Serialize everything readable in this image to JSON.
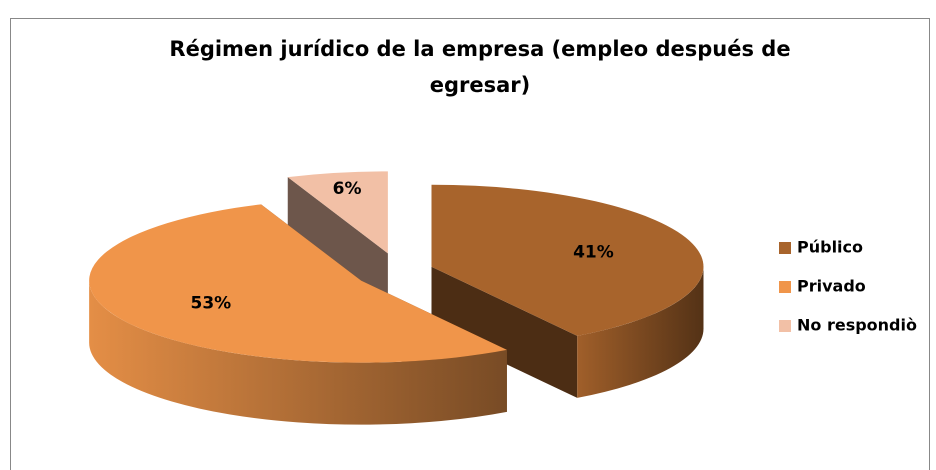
{
  "chart_data": {
    "type": "pie3d",
    "title": [
      "Régimen jurídico de la empresa (empleo después de",
      "egresar)"
    ],
    "categories": [
      "Público",
      "Privado",
      "No respondiò"
    ],
    "values": [
      41,
      53,
      6
    ],
    "value_labels": [
      "41%",
      "53%",
      "6%"
    ],
    "colors": [
      "#a8642c",
      "#f0954a",
      "#f2c0a6"
    ],
    "legend": "right"
  }
}
